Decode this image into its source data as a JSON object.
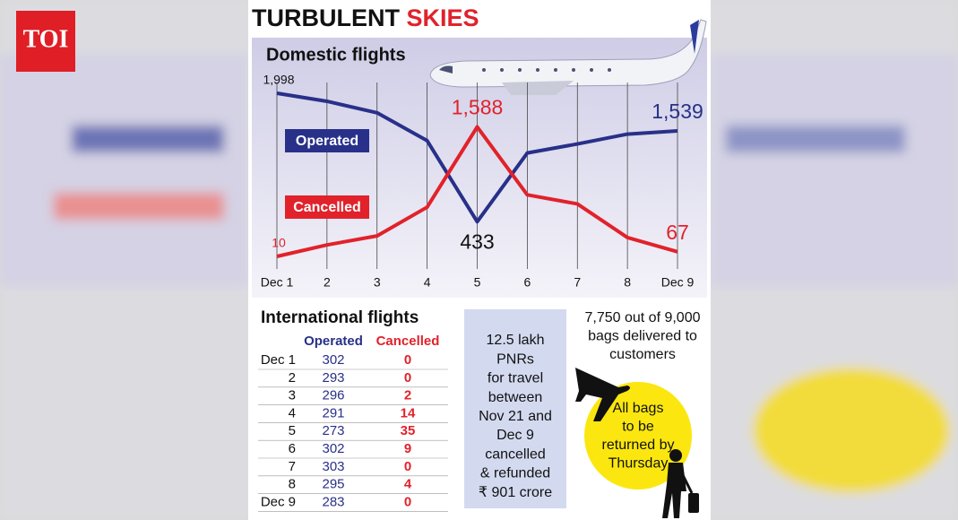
{
  "logo": "TOI",
  "header": {
    "title_dark": "TURBULENT",
    "title_red": "SKIES"
  },
  "chart_data": {
    "type": "line",
    "title": "Domestic flights",
    "categories": [
      "Dec 1",
      "2",
      "3",
      "4",
      "5",
      "6",
      "7",
      "8",
      "Dec 9"
    ],
    "grid": true,
    "series": [
      {
        "name": "Operated",
        "color": "#283089",
        "values": [
          1998,
          1900,
          1760,
          1420,
          433,
          1270,
          1380,
          1500,
          1539
        ],
        "value_labels": [
          "1,998",
          null,
          null,
          null,
          "433",
          null,
          null,
          null,
          "1,539"
        ]
      },
      {
        "name": "Cancelled",
        "color": "#e1222b",
        "values": [
          10,
          150,
          260,
          610,
          1588,
          760,
          650,
          240,
          67
        ],
        "value_labels": [
          "10",
          null,
          null,
          null,
          "1,588",
          null,
          null,
          null,
          "67"
        ]
      }
    ]
  },
  "table": {
    "title": "International flights",
    "columns": [
      "Operated",
      "Cancelled"
    ],
    "rows": [
      [
        "Dec 1",
        "302",
        "0"
      ],
      [
        "2",
        "293",
        "0"
      ],
      [
        "3",
        "296",
        "2"
      ],
      [
        "4",
        "291",
        "14"
      ],
      [
        "5",
        "273",
        "35"
      ],
      [
        "6",
        "302",
        "9"
      ],
      [
        "7",
        "303",
        "0"
      ],
      [
        "8",
        "295",
        "4"
      ],
      [
        "Dec 9",
        "283",
        "0"
      ]
    ]
  },
  "pnr_note": [
    "12.5 lakh",
    "PNRs",
    "for travel",
    "between",
    "Nov 21 and",
    "Dec 9",
    "cancelled",
    "& refunded",
    "₹ 901 crore"
  ],
  "bags_note": [
    "7,750 out of 9,000",
    "bags delivered to",
    "customers"
  ],
  "bags_callout": [
    "All bags",
    "to be",
    "returned by",
    "Thursday"
  ]
}
